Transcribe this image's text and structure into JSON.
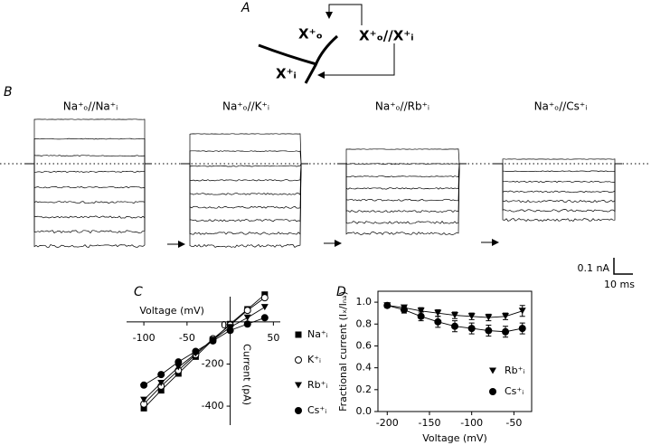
{
  "panel_a": {
    "label": "A",
    "nodes": [
      "X⁺ₒ",
      "X⁺ₒ//X⁺ᵢ",
      "X⁺ᵢ"
    ]
  },
  "panel_b": {
    "label": "B",
    "titles": [
      "Na⁺ₒ//Na⁺ᵢ",
      "Na⁺ₒ//K⁺ᵢ",
      "Na⁺ₒ//Rb⁺ᵢ",
      "Na⁺ₒ//Cs⁺ᵢ"
    ],
    "scale_bar": {
      "current": "0.1 nA",
      "time": "10 ms"
    }
  },
  "chart_data": [
    {
      "label": "C",
      "type": "line",
      "axes": "origin",
      "x_label": "Voltage (mV)",
      "y_label": "Current (pA)",
      "x": [
        -100,
        -80,
        -60,
        -40,
        -20,
        0,
        20,
        40
      ],
      "series": [
        {
          "name": "Na⁺ᵢ",
          "marker": "square",
          "color": "#000000",
          "values": [
            -410,
            -325,
            -245,
            -165,
            -85,
            -10,
            60,
            130
          ]
        },
        {
          "name": "K⁺ᵢ",
          "marker": "open-circle",
          "color": "#000000",
          "values": [
            -390,
            -305,
            -230,
            -155,
            -80,
            -15,
            55,
            115
          ]
        },
        {
          "name": "Rb⁺ᵢ",
          "marker": "triangle-down",
          "color": "#000000",
          "values": [
            -370,
            -290,
            -215,
            -150,
            -85,
            -25,
            20,
            70
          ]
        },
        {
          "name": "Cs⁺ᵢ",
          "marker": "circle",
          "color": "#000000",
          "values": [
            -300,
            -250,
            -190,
            -140,
            -90,
            -40,
            -10,
            20
          ]
        }
      ],
      "xlim": [
        -120,
        58
      ],
      "xticks": [
        -100,
        -50,
        0,
        50
      ],
      "ylim": [
        -490,
        120
      ],
      "yticks": [
        -400,
        -200
      ]
    },
    {
      "label": "D",
      "type": "line",
      "axes": "box",
      "x_label": "Voltage (mV)",
      "y_label": "Fractional current (Iₓ/Iₙₐ)",
      "x": [
        -200,
        -180,
        -160,
        -140,
        -120,
        -100,
        -80,
        -60,
        -40
      ],
      "series": [
        {
          "name": "Rb⁺ᵢ",
          "marker": "triangle-down",
          "color": "#000000",
          "values": [
            0.97,
            0.95,
            0.92,
            0.9,
            0.88,
            0.87,
            0.86,
            0.87,
            0.92
          ],
          "errors": [
            0.02,
            0.02,
            0.03,
            0.03,
            0.03,
            0.03,
            0.03,
            0.03,
            0.05
          ]
        },
        {
          "name": "Cs⁺ᵢ",
          "marker": "circle",
          "color": "#000000",
          "values": [
            0.97,
            0.93,
            0.87,
            0.82,
            0.78,
            0.76,
            0.74,
            0.73,
            0.76
          ],
          "errors": [
            0.02,
            0.03,
            0.04,
            0.05,
            0.05,
            0.05,
            0.05,
            0.05,
            0.05
          ]
        }
      ],
      "xlim": [
        -211,
        -29
      ],
      "xticks": [
        -200,
        -150,
        -100,
        -50
      ],
      "ylim": [
        0,
        1.1
      ],
      "yticks": [
        {
          "value": 0,
          "label": "0.0"
        },
        {
          "value": 0.2,
          "label": "0.2"
        },
        {
          "value": 0.4,
          "label": "0.4"
        },
        {
          "value": 0.6,
          "label": "0.6"
        },
        {
          "value": 0.8,
          "label": "0.8"
        },
        {
          "value": 1,
          "label": "1.0"
        }
      ]
    }
  ]
}
